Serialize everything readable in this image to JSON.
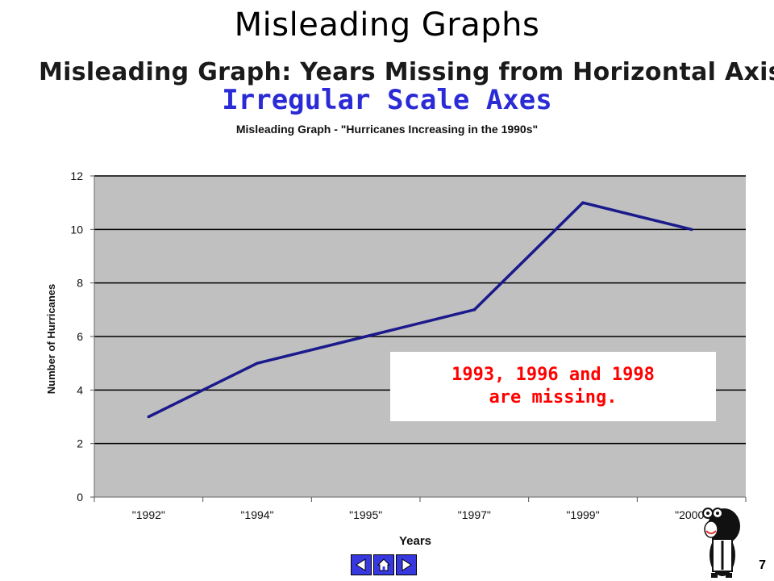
{
  "slide": {
    "title": "Misleading Graphs",
    "banner": "Misleading Graph: Years Missing from Horizontal Axis",
    "subtitle": "Irregular Scale Axes",
    "page_number": "7"
  },
  "callout": {
    "line1": "1993, 1996 and 1998",
    "line2": "are missing."
  },
  "nav": {
    "prev_icon": "left-triangle-icon",
    "home_icon": "home-icon",
    "next_icon": "right-triangle-icon",
    "color": "#3838e0"
  },
  "chart_data": {
    "type": "line",
    "title": "Misleading Graph - \"Hurricanes Increasing in the 1990s\"",
    "xlabel": "Years",
    "ylabel": "Number of Hurricanes",
    "categories": [
      "\"1992\"",
      "\"1994\"",
      "\"1995\"",
      "\"1997\"",
      "\"1999\"",
      "\"2000\""
    ],
    "values": [
      3,
      5,
      6,
      7,
      11,
      10
    ],
    "ylim": [
      0,
      12
    ],
    "yticks": [
      "0",
      "2",
      "4",
      "6",
      "8",
      "10",
      "12"
    ],
    "grid": true,
    "plot_background": "#c0c0c0",
    "line_color": "#1a1a8c"
  }
}
